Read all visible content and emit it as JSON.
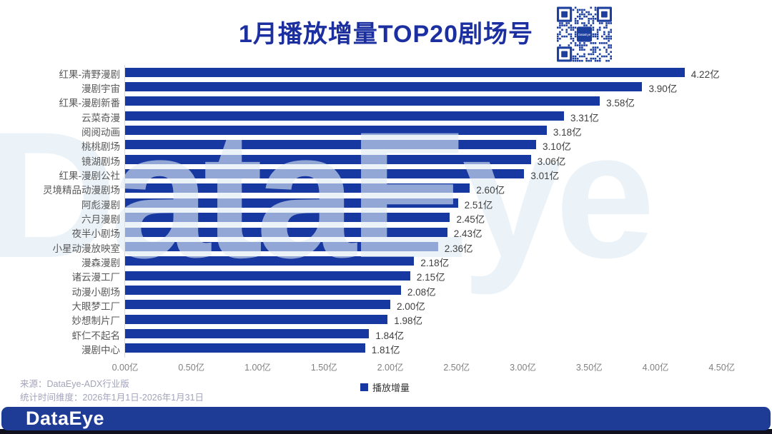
{
  "title": "1月播放增量TOP20剧场号",
  "watermark": "DataEye",
  "qr_center_label": "DataEye",
  "chart_data": {
    "type": "bar",
    "orientation": "horizontal",
    "title": "1月播放增量TOP20剧场号",
    "unit": "亿",
    "categories": [
      "红果-清野漫剧",
      "漫剧宇宙",
      "红果-漫剧新番",
      "云菜奇漫",
      "阅阅动画",
      "桃桃剧场",
      "镜湖剧场",
      "红果-漫剧公社",
      "灵境精品动漫剧场",
      "阿彪漫剧",
      "六月漫剧",
      "夜半小剧场",
      "小星动漫放映室",
      "漫森漫剧",
      "诸云漫工厂",
      "动漫小剧场",
      "大眼梦工厂",
      "妙想制片厂",
      "虾仁不起名",
      "漫剧中心"
    ],
    "values": [
      4.22,
      3.9,
      3.58,
      3.31,
      3.18,
      3.1,
      3.06,
      3.01,
      2.6,
      2.51,
      2.45,
      2.43,
      2.36,
      2.18,
      2.15,
      2.08,
      2.0,
      1.98,
      1.84,
      1.81
    ],
    "value_labels": [
      "4.22亿",
      "3.90亿",
      "3.58亿",
      "3.31亿",
      "3.18亿",
      "3.10亿",
      "3.06亿",
      "3.01亿",
      "2.60亿",
      "2.51亿",
      "2.45亿",
      "2.43亿",
      "2.36亿",
      "2.18亿",
      "2.15亿",
      "2.08亿",
      "2.00亿",
      "1.98亿",
      "1.84亿",
      "1.81亿"
    ],
    "x_ticks": [
      "0.00亿",
      "0.50亿",
      "1.00亿",
      "1.50亿",
      "2.00亿",
      "2.50亿",
      "3.00亿",
      "3.50亿",
      "4.00亿",
      "4.50亿"
    ],
    "xlim": [
      0,
      4.5
    ],
    "grid": false,
    "legend": {
      "label": "播放增量",
      "position": "bottom"
    }
  },
  "footer": {
    "source": "来源：DataEye-ADX行业版",
    "period": "统计时间维度：2026年1月1日-2026年1月31日",
    "brand": "DataEye"
  },
  "colors": {
    "bar": "#1638a0",
    "title": "#1b2fa0",
    "bottom_bar": "#1e3c96",
    "qr": "#1d3f9e"
  }
}
